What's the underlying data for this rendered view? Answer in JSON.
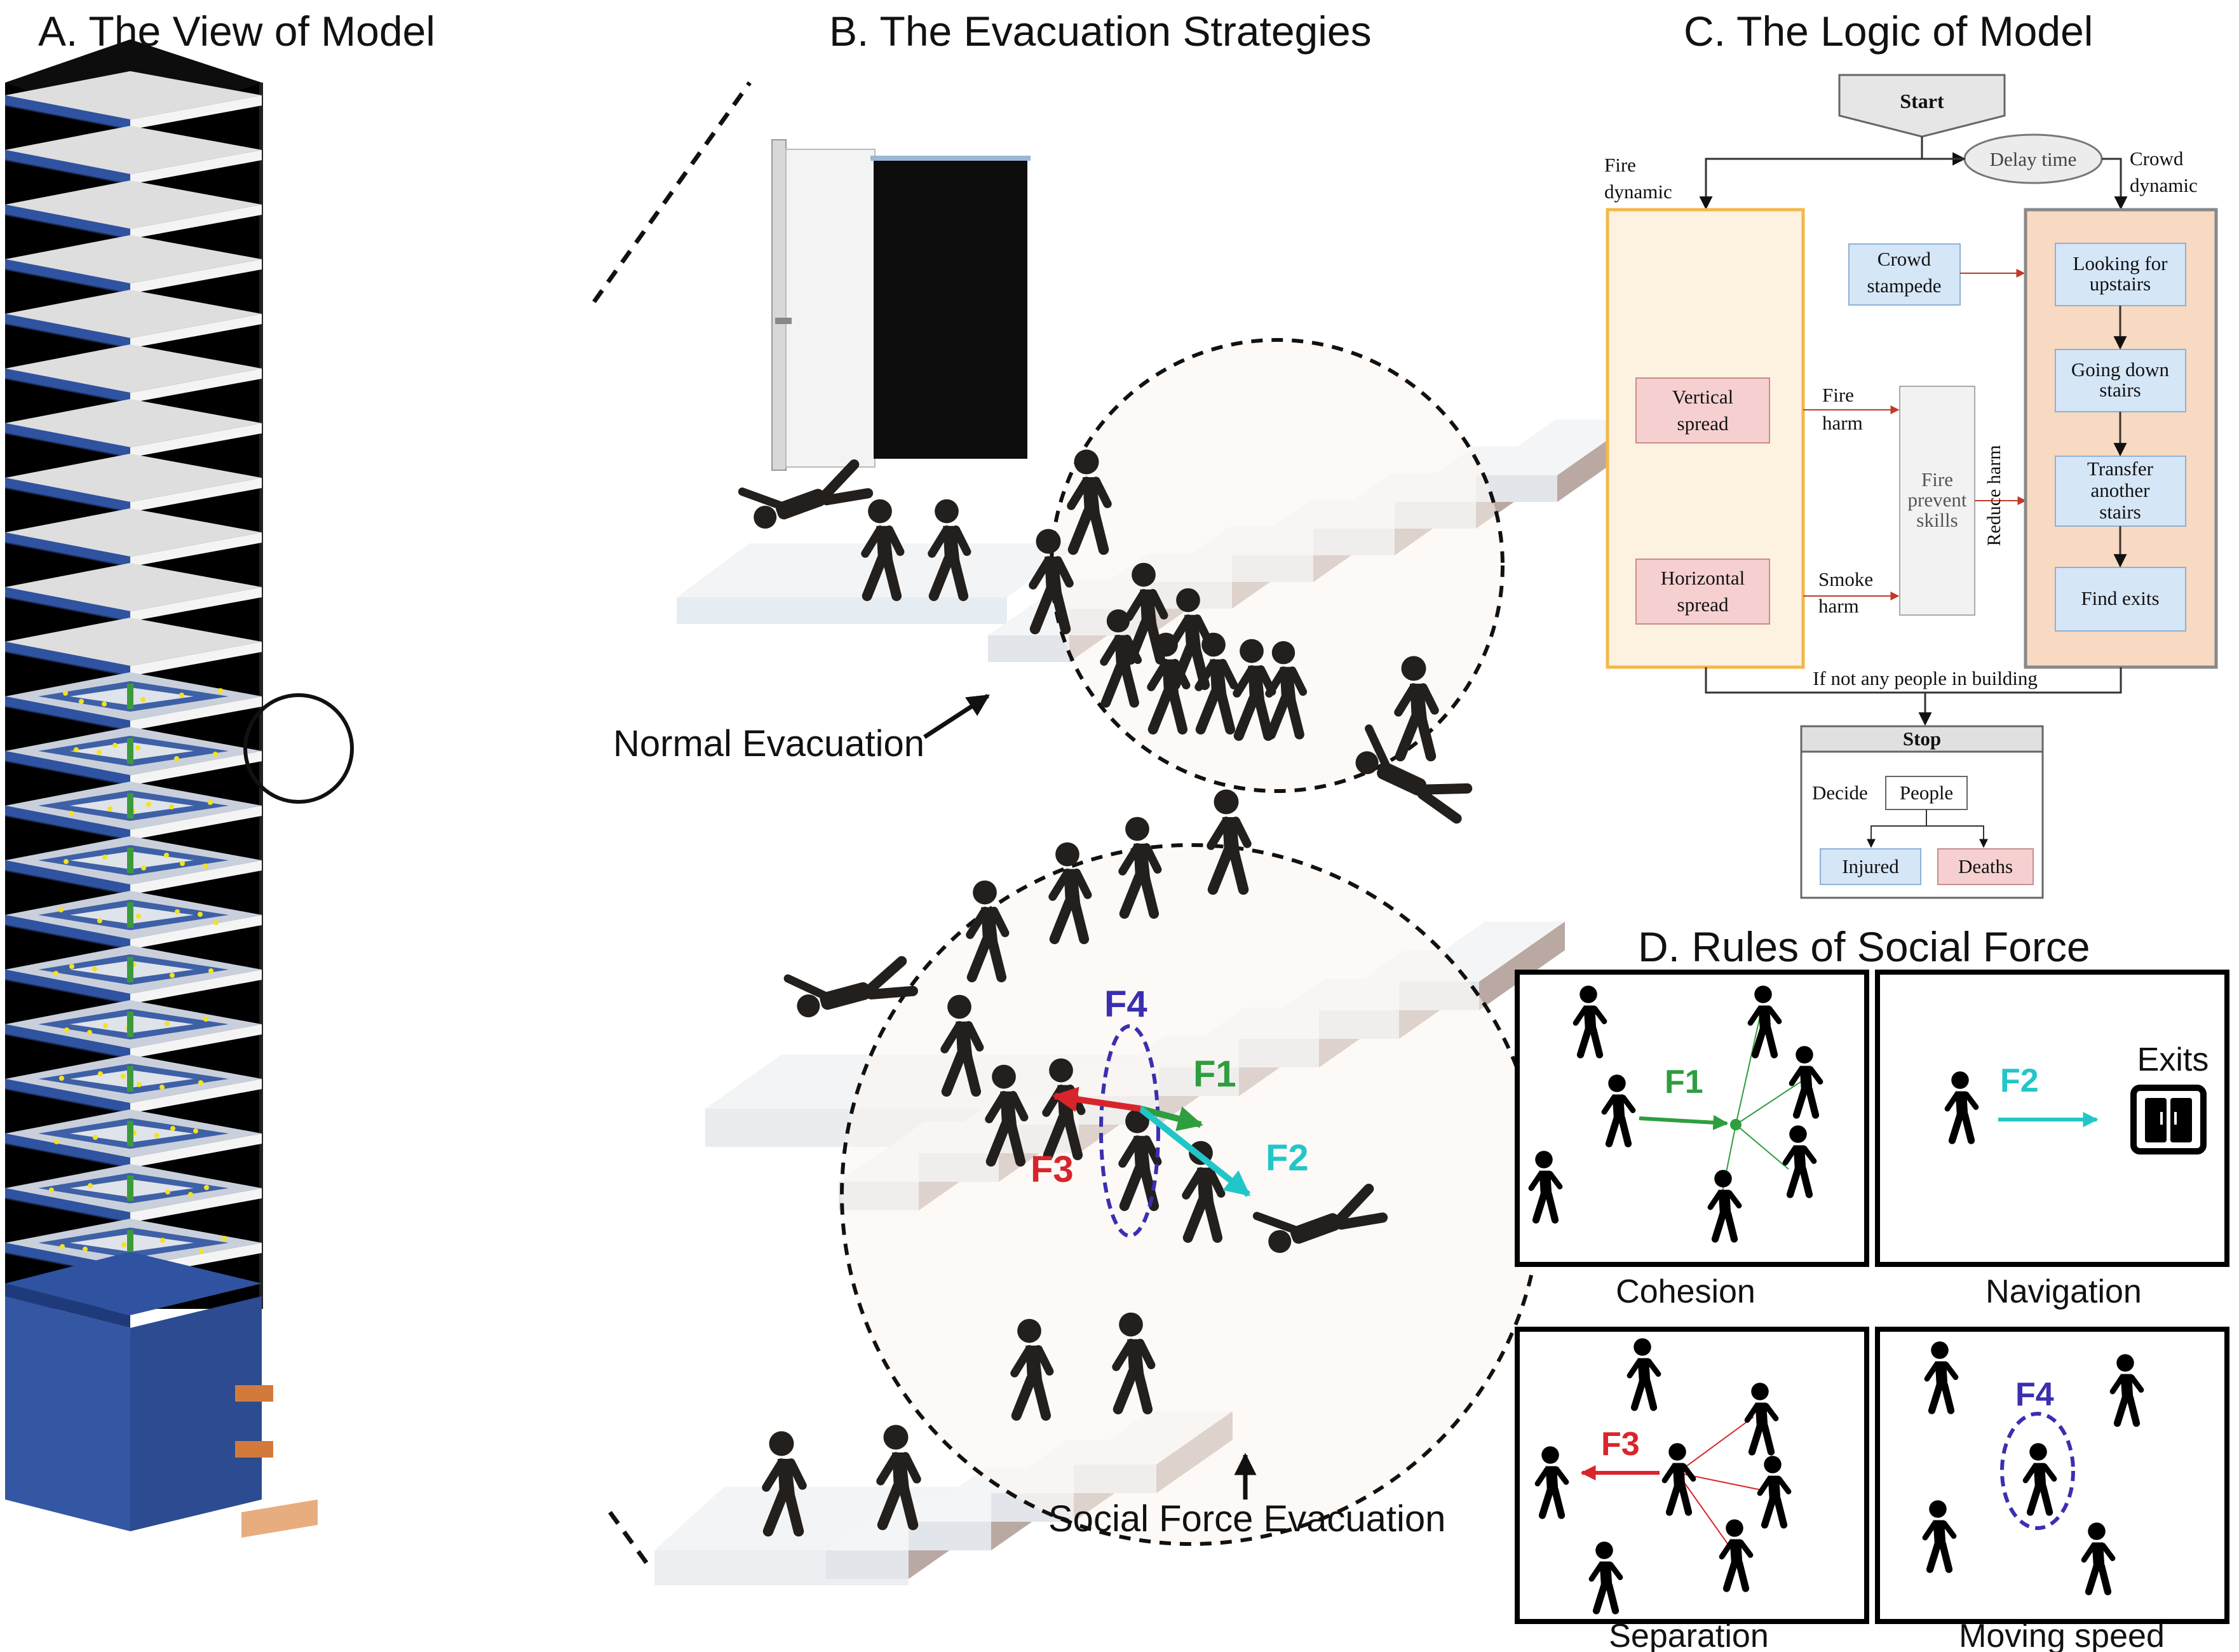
{
  "panels": {
    "a": {
      "title": "A. The View of Model"
    },
    "b": {
      "title": "B. The Evacuation Strategies",
      "normal_label": "Normal Evacuation",
      "social_label": "Social Force Evacuation",
      "f1": "F1",
      "f2": "F2",
      "f3": "F3",
      "f4": "F4"
    },
    "c": {
      "title": "C. The Logic of Model",
      "start": "Start",
      "delay": "Delay time",
      "fire_dynamic": [
        "Fire",
        "dynamic"
      ],
      "crowd_dynamic": [
        "Crowd",
        "dynamic"
      ],
      "crowd_stampede": [
        "Crowd",
        "stampede"
      ],
      "vertical_spread": [
        "Vertical",
        "spread"
      ],
      "horizontal_spread": [
        "Horizontal",
        "spread"
      ],
      "fire_harm": [
        "Fire",
        "harm"
      ],
      "smoke_harm": [
        "Smoke",
        "harm"
      ],
      "fire_prevent": [
        "Fire",
        "prevent",
        "skills"
      ],
      "reduce_harm": "Reduce harm",
      "looking": [
        "Looking for",
        "upstairs"
      ],
      "going_down": [
        "Going down",
        "stairs"
      ],
      "transfer": [
        "Transfer",
        "another",
        "stairs"
      ],
      "find_exits": "Find exits",
      "if_not": "If not any people in building",
      "stop": "Stop",
      "decide": "Decide",
      "people": "People",
      "injured": "Injured",
      "deaths": "Deaths"
    },
    "d": {
      "title": "D. Rules of Social Force",
      "cohesion": "Cohesion",
      "navigation": "Navigation",
      "separation": "Separation",
      "moving_speed": "Moving speed",
      "exits": "Exits",
      "f1": "F1",
      "f2": "F2",
      "f3": "F3",
      "f4": "F4"
    }
  },
  "colors": {
    "floor_blue": "#2f53a0",
    "fire_box": "#f5c77e",
    "crowd_box": "#f8d7bf",
    "blue_box": "#d5e6f7",
    "red_box": "#f4cccc",
    "f1_green": "#2e9e3f",
    "f2_cyan": "#22c6c9",
    "f3_red": "#d8252b",
    "f4_purple": "#3a2fb0"
  }
}
